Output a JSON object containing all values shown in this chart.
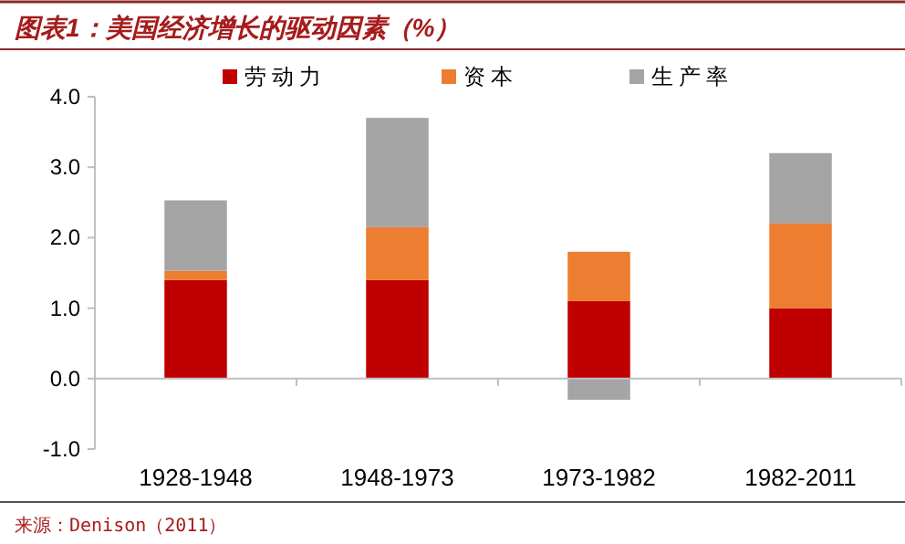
{
  "chart_data": {
    "type": "bar",
    "stacked": true,
    "title": "图表1：美国经济增长的驱动因素（%）",
    "categories": [
      "1928-1948",
      "1948-1973",
      "1973-1982",
      "1982-2011"
    ],
    "series": [
      {
        "name": "劳动力",
        "color": "#c00000",
        "values": [
          1.4,
          1.4,
          1.1,
          1.0
        ]
      },
      {
        "name": "资本",
        "color": "#ed7d31",
        "values": [
          0.13,
          0.75,
          0.7,
          1.2
        ]
      },
      {
        "name": "生产率",
        "color": "#a5a5a5",
        "values": [
          1.0,
          1.55,
          -0.3,
          1.0
        ]
      }
    ],
    "ylim": [
      -1,
      4
    ],
    "yticks": [
      {
        "value": -1,
        "label": "-1.0"
      },
      {
        "value": 0,
        "label": "0.0"
      },
      {
        "value": 1,
        "label": "1.0"
      },
      {
        "value": 2,
        "label": "2.0"
      },
      {
        "value": 3,
        "label": "3.0"
      },
      {
        "value": 4,
        "label": "4.0"
      }
    ],
    "legend": "top",
    "annotations": [
      "来源：Denison（2011）"
    ]
  }
}
